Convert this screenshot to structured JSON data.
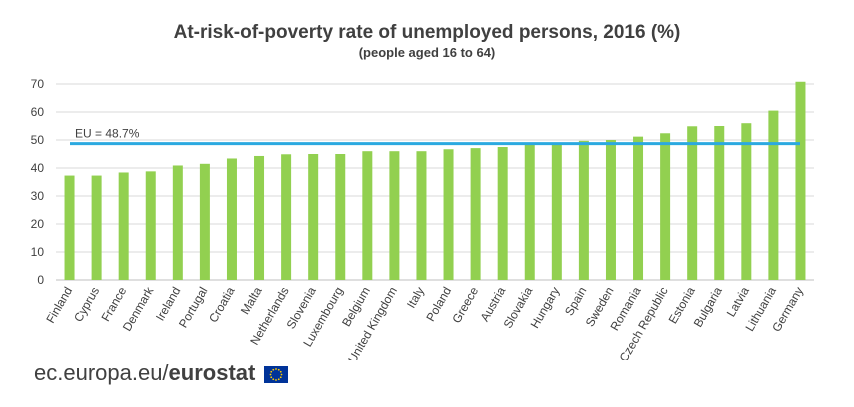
{
  "chart_data": {
    "type": "bar",
    "title": "At-risk-of-poverty rate of unemployed persons, 2016 (%)",
    "subtitle": "(people aged 16 to 64)",
    "xlabel": "",
    "ylabel": "",
    "ylim": [
      0,
      70
    ],
    "yticks": [
      0,
      10,
      20,
      30,
      40,
      50,
      60,
      70
    ],
    "grid": true,
    "legend": "none",
    "categories": [
      "Finland",
      "Cyprus",
      "France",
      "Denmark",
      "Ireland",
      "Portugal",
      "Croatia",
      "Malta",
      "Netherlands",
      "Slovenia",
      "Luxembourg",
      "Belgium",
      "United Kingdom",
      "Italy",
      "Poland",
      "Greece",
      "Austria",
      "Slovakia",
      "Hungary",
      "Spain",
      "Sweden",
      "Romania",
      "Czech Republic",
      "Estonia",
      "Bulgaria",
      "Latvia",
      "Lithuania",
      "Germany"
    ],
    "values": [
      37.3,
      37.3,
      38.4,
      38.8,
      40.9,
      41.5,
      43.4,
      44.3,
      44.9,
      45.0,
      45.0,
      46.0,
      46.0,
      46.0,
      46.7,
      47.1,
      47.5,
      48.7,
      48.7,
      49.7,
      50.0,
      51.2,
      52.4,
      54.9,
      55.0,
      56.0,
      60.5,
      70.8
    ],
    "reference_line": {
      "value": 48.7,
      "label": "EU = 48.7%"
    },
    "colors": {
      "bar": "#92D050",
      "reference_line": "#2BA9E0",
      "grid": "#D9D9D9",
      "text": "#404040"
    }
  },
  "footer": {
    "domain": "ec.europa.eu/",
    "brand": "eurostat"
  }
}
